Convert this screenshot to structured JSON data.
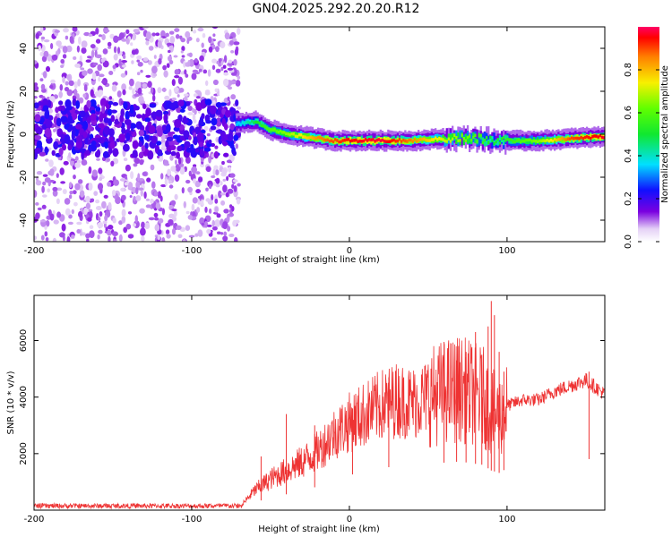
{
  "title": "GN04.2025.292.20.20.R12",
  "chart_data": [
    {
      "id": "spectrogram",
      "type": "heatmap",
      "xlabel": "Height of straight line (km)",
      "ylabel": "Frequency (Hz)",
      "xlim": [
        -200,
        162
      ],
      "ylim": [
        -50,
        50
      ],
      "xticks": [
        -200,
        -100,
        0,
        100
      ],
      "xtick_labels": [
        "-200",
        "-100",
        "0",
        "100"
      ],
      "yticks": [
        -40,
        -20,
        0,
        20,
        40
      ],
      "ytick_labels": [
        "-40",
        "-20",
        "0",
        "20",
        "40"
      ],
      "colorbar": {
        "label": "Normalized spectral amplitude",
        "range": [
          0,
          1
        ],
        "ticks": [
          0.0,
          0.2,
          0.4,
          0.6,
          0.8
        ],
        "tick_labels": [
          "0.0",
          "0.2",
          "0.4",
          "0.6",
          "0.8"
        ]
      },
      "ridge_center_hz": [
        [
          -70,
          5
        ],
        [
          -60,
          6
        ],
        [
          -50,
          2
        ],
        [
          -40,
          0
        ],
        [
          -30,
          -1
        ],
        [
          -20,
          -2
        ],
        [
          -10,
          -3
        ],
        [
          0,
          -3
        ],
        [
          20,
          -3
        ],
        [
          40,
          -3
        ],
        [
          60,
          -2
        ],
        [
          80,
          -2
        ],
        [
          90,
          -3
        ],
        [
          100,
          -3
        ],
        [
          120,
          -3
        ],
        [
          140,
          -2
        ],
        [
          162,
          -1
        ]
      ],
      "ridge_peak_amplitude": [
        [
          -70,
          0.35
        ],
        [
          -60,
          0.5
        ],
        [
          -50,
          0.6
        ],
        [
          -40,
          0.65
        ],
        [
          -30,
          0.75
        ],
        [
          -20,
          0.85
        ],
        [
          -10,
          0.9
        ],
        [
          0,
          0.95
        ],
        [
          20,
          0.98
        ],
        [
          40,
          0.85
        ],
        [
          60,
          0.7
        ],
        [
          80,
          0.6
        ],
        [
          90,
          0.5
        ],
        [
          100,
          0.55
        ],
        [
          120,
          0.65
        ],
        [
          140,
          0.9
        ],
        [
          162,
          0.97
        ]
      ],
      "noise_region_x": [
        -200,
        -70
      ],
      "noise_scatter_hz": [
        -50,
        50
      ],
      "noise_band_hz": [
        -10,
        15
      ]
    },
    {
      "id": "snr",
      "type": "line",
      "xlabel": "Height of straight line (km)",
      "ylabel": "SNR (10 * v/v)",
      "xlim": [
        -200,
        162
      ],
      "ylim": [
        0,
        7600
      ],
      "xticks": [
        -200,
        -100,
        0,
        100
      ],
      "xtick_labels": [
        "-200",
        "-100",
        "0",
        "100"
      ],
      "yticks": [
        2000,
        4000,
        6000
      ],
      "ytick_labels": [
        "2000",
        "4000",
        "6000"
      ],
      "line_color": "#ee3333",
      "envelope": [
        [
          -200,
          120
        ],
        [
          -75,
          120
        ],
        [
          -68,
          200
        ],
        [
          -60,
          700
        ],
        [
          -50,
          1100
        ],
        [
          -40,
          1400
        ],
        [
          -30,
          1700
        ],
        [
          -20,
          2100
        ],
        [
          -10,
          2700
        ],
        [
          0,
          3100
        ],
        [
          10,
          3400
        ],
        [
          20,
          3700
        ],
        [
          30,
          3900
        ],
        [
          40,
          3800
        ],
        [
          50,
          4000
        ],
        [
          60,
          4200
        ],
        [
          70,
          4300
        ],
        [
          80,
          4100
        ],
        [
          85,
          4000
        ],
        [
          90,
          3500
        ],
        [
          95,
          3300
        ],
        [
          100,
          3700
        ],
        [
          110,
          3900
        ],
        [
          120,
          3900
        ],
        [
          130,
          4200
        ],
        [
          140,
          4400
        ],
        [
          150,
          4600
        ],
        [
          162,
          4100
        ]
      ],
      "spikes": [
        [
          -56,
          1900
        ],
        [
          -40,
          3400
        ],
        [
          -22,
          3000
        ],
        [
          2,
          3600
        ],
        [
          25,
          4700
        ],
        [
          60,
          5100
        ],
        [
          68,
          5300
        ],
        [
          74,
          5600
        ],
        [
          80,
          6300
        ],
        [
          84,
          5500
        ],
        [
          88,
          6500
        ],
        [
          90,
          7400
        ],
        [
          92,
          6900
        ],
        [
          95,
          5600
        ],
        [
          98,
          4900
        ],
        [
          152,
          4900
        ]
      ]
    }
  ]
}
